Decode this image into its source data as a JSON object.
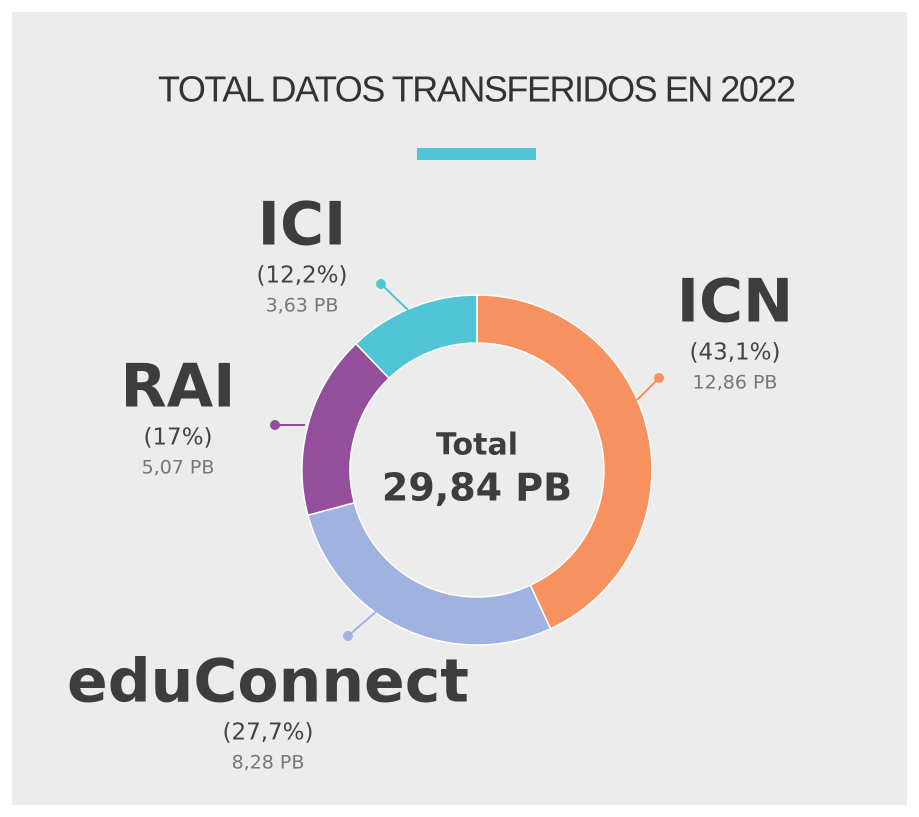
{
  "chart_data": {
    "type": "donut",
    "title": "TOTAL DATOS TRANSFERIDOS EN 2022",
    "categories": [
      "ICN",
      "eduConnect",
      "RAI",
      "ICI"
    ],
    "values": [
      12.86,
      8.28,
      5.07,
      3.63
    ],
    "value_labels": [
      "12,86 PB",
      "8,28 PB",
      "5,07 PB",
      "3,63 PB"
    ],
    "percentages": [
      43.1,
      27.7,
      17,
      12.2
    ],
    "percentage_labels": [
      "(43,1%)",
      "(27,7%)",
      "(17%)",
      "(12,2%)"
    ],
    "colors": [
      "#f7915f",
      "#a0b3e0",
      "#944f9c",
      "#4fc5d5"
    ],
    "center_label": "Total",
    "total": {
      "value": 29.84,
      "label": "29,84 PB"
    }
  }
}
